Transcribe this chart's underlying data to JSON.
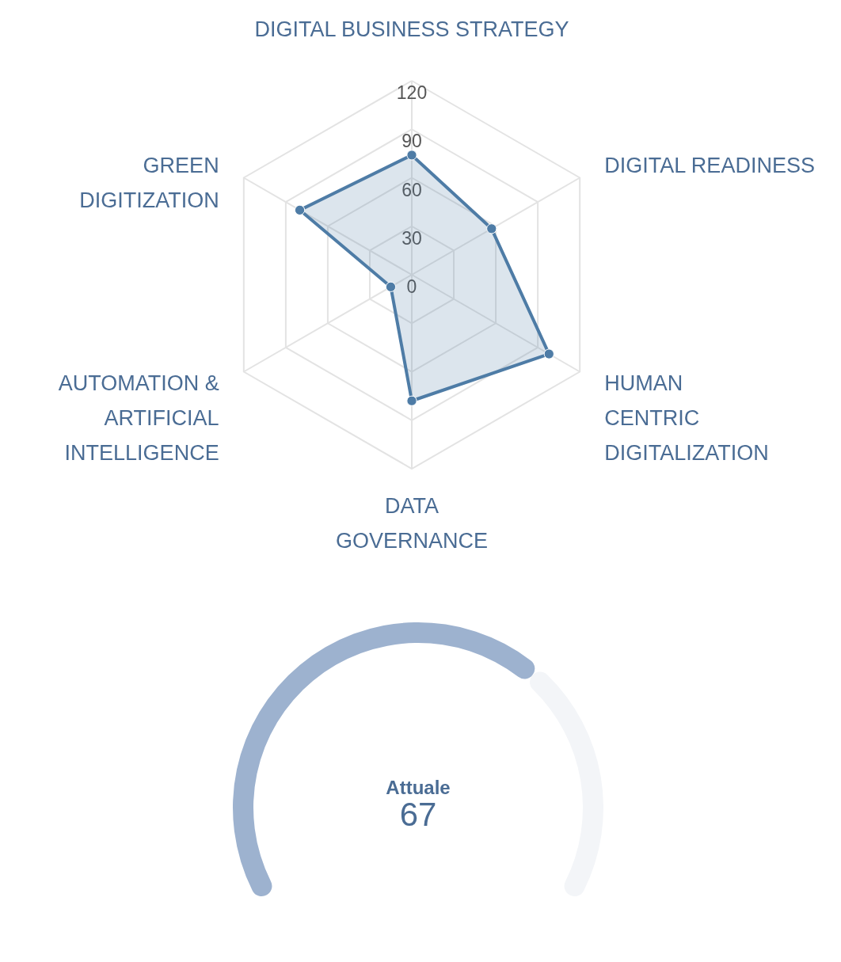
{
  "chart_data": [
    {
      "type": "radar",
      "categories": [
        "DIGITAL BUSINESS STRATEGY",
        "DIGITAL READINESS",
        "HUMAN CENTRIC DIGITALIZATION",
        "DATA GOVERNANCE",
        "AUTOMATION & ARTIFICIAL INTELLIGENCE",
        "GREEN DIGITIZATION"
      ],
      "series": [
        {
          "color": "#4e7ca6",
          "values": [
            74,
            57,
            98,
            78,
            15,
            80
          ]
        }
      ],
      "ylim": [
        0,
        120
      ],
      "yticks": [
        0,
        30,
        60,
        90,
        120
      ],
      "grid": true,
      "marker": "circle"
    },
    {
      "type": "donut",
      "categories": [
        null,
        null
      ],
      "values": [
        67,
        33
      ],
      "colors": [
        "#9db2cf",
        "#f3f5f8"
      ],
      "annotations": [
        "Attuale",
        "67"
      ]
    }
  ]
}
